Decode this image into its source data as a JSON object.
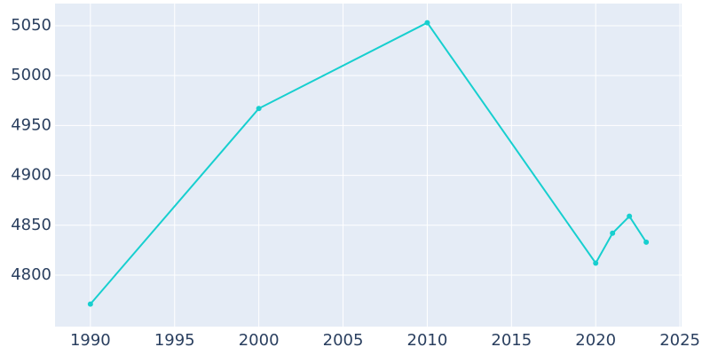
{
  "chart_data": {
    "type": "line",
    "x": [
      1990,
      2000,
      2010,
      2020,
      2021,
      2022,
      2023
    ],
    "series": [
      {
        "color": "#17cfcf",
        "values": [
          4771,
          4967,
          5053,
          4812,
          4842,
          4859,
          4833
        ]
      }
    ],
    "xlim": [
      1987.9,
      2025.1
    ],
    "ylim": [
      4748.4,
      5072.2
    ],
    "xticks": [
      1990,
      1995,
      2000,
      2005,
      2010,
      2015,
      2020,
      2025
    ],
    "yticks": [
      4800,
      4850,
      4900,
      4950,
      5000,
      5050
    ],
    "grid": true
  }
}
